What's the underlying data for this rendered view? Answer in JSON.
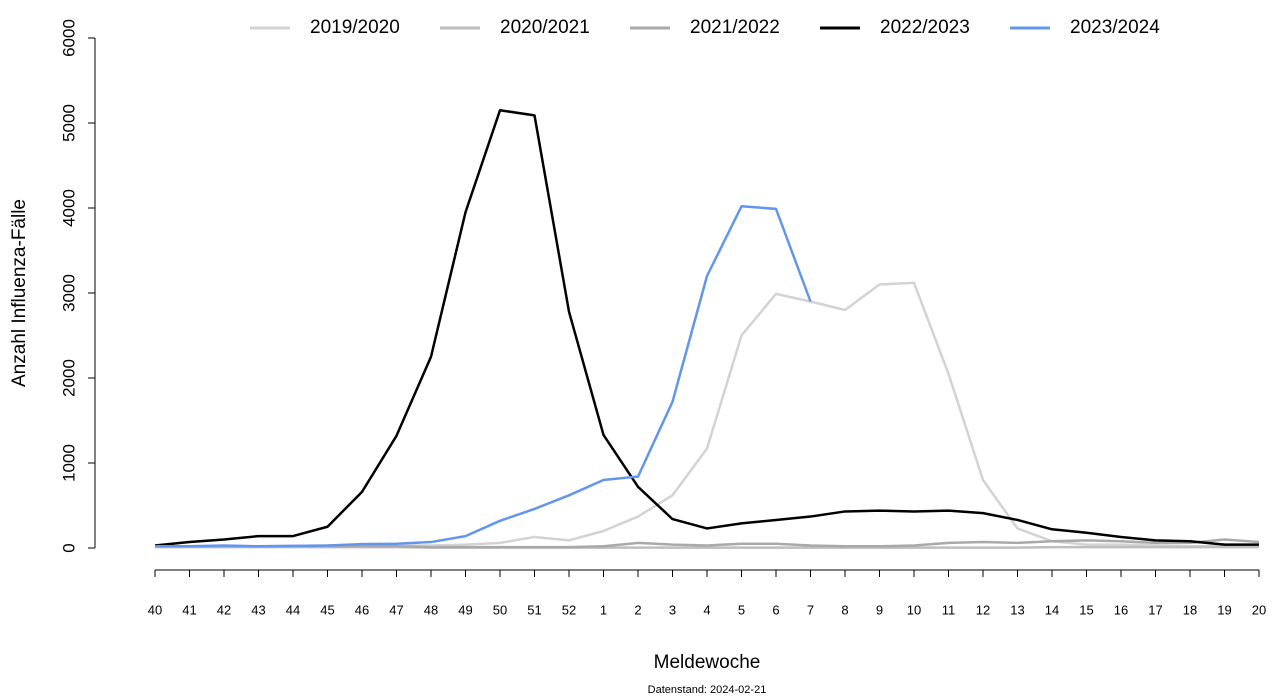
{
  "chart_data": {
    "type": "line",
    "xlabel": "Meldewoche",
    "ylabel": "Anzahl Influenza-Fälle",
    "footnote": "Datenstand: 2024-02-21",
    "categories": [
      "40",
      "41",
      "42",
      "43",
      "44",
      "45",
      "46",
      "47",
      "48",
      "49",
      "50",
      "51",
      "52",
      "1",
      "2",
      "3",
      "4",
      "5",
      "6",
      "7",
      "8",
      "9",
      "10",
      "11",
      "12",
      "13",
      "14",
      "15",
      "16",
      "17",
      "18",
      "19",
      "20"
    ],
    "ylim": [
      0,
      6000
    ],
    "yticks": [
      0,
      1000,
      2000,
      3000,
      4000,
      5000,
      6000
    ],
    "legend": "top",
    "series": [
      {
        "name": "2019/2020",
        "color": "#d3d3d3",
        "values": [
          20,
          20,
          25,
          20,
          25,
          30,
          35,
          30,
          30,
          40,
          60,
          130,
          90,
          200,
          370,
          620,
          1170,
          2500,
          2990,
          2900,
          2800,
          3100,
          3120,
          2050,
          800,
          230,
          80,
          40,
          40,
          30,
          20,
          20,
          20
        ]
      },
      {
        "name": "2020/2021",
        "color": "#bebebe",
        "values": [
          10,
          10,
          10,
          10,
          10,
          10,
          10,
          10,
          5,
          5,
          5,
          5,
          5,
          5,
          5,
          5,
          5,
          5,
          5,
          5,
          5,
          5,
          5,
          5,
          5,
          5,
          10,
          10,
          10,
          10,
          10,
          10,
          10
        ]
      },
      {
        "name": "2021/2022",
        "color": "#a9a9a9",
        "values": [
          20,
          20,
          20,
          20,
          20,
          20,
          20,
          20,
          10,
          10,
          10,
          10,
          10,
          20,
          60,
          40,
          30,
          50,
          50,
          30,
          20,
          20,
          30,
          60,
          70,
          60,
          80,
          90,
          80,
          60,
          60,
          100,
          70
        ]
      },
      {
        "name": "2022/2023",
        "color": "#000000",
        "values": [
          30,
          70,
          100,
          140,
          140,
          250,
          660,
          1320,
          2250,
          3950,
          5150,
          5090,
          2780,
          1330,
          720,
          340,
          230,
          290,
          330,
          370,
          430,
          440,
          430,
          440,
          410,
          330,
          220,
          180,
          130,
          90,
          80,
          40,
          40
        ]
      },
      {
        "name": "2023/2024",
        "color": "#6495ed",
        "values": [
          20,
          20,
          30,
          20,
          25,
          30,
          45,
          50,
          70,
          140,
          320,
          460,
          620,
          800,
          840,
          1720,
          3200,
          4020,
          3990,
          2900,
          null,
          null,
          null,
          null,
          null,
          null,
          null,
          null,
          null,
          null,
          null,
          null,
          null
        ]
      }
    ]
  }
}
